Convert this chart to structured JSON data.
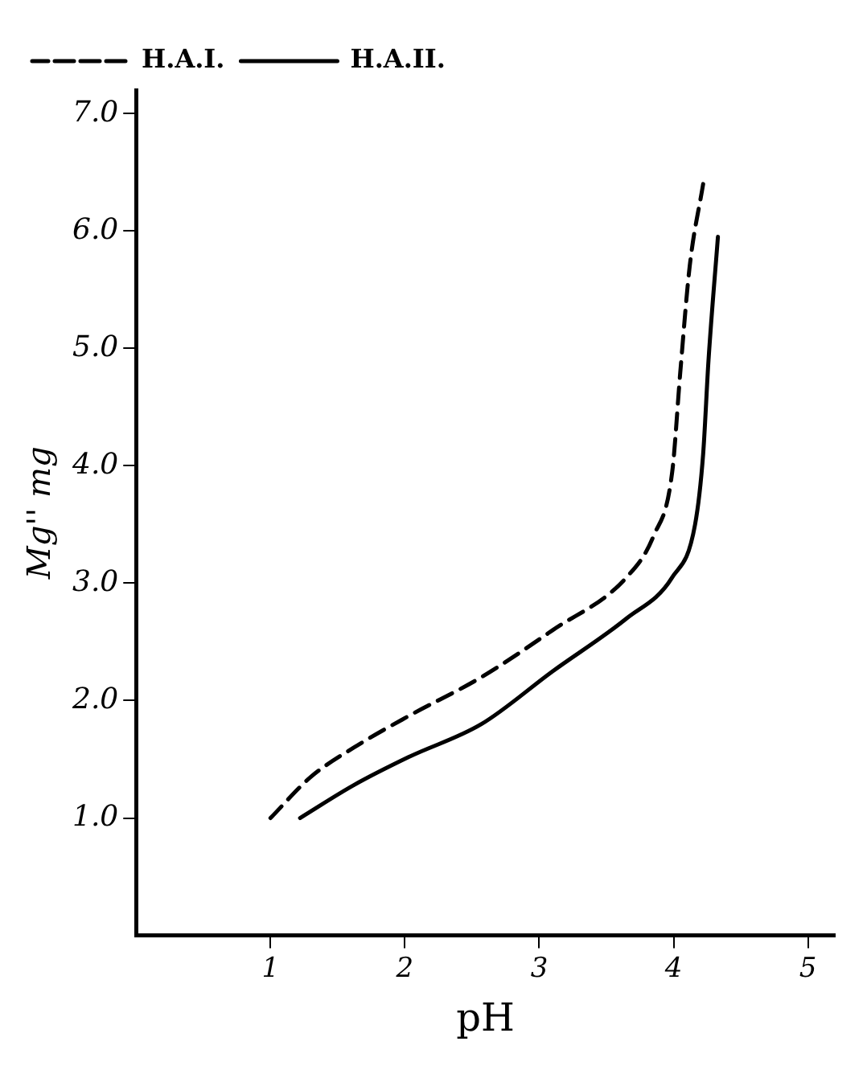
{
  "chart_data": {
    "type": "line",
    "xlabel": "pH",
    "ylabel": "Mg'' mg",
    "xlim": [
      0,
      5.2
    ],
    "xticks": [
      1,
      2,
      3,
      4,
      5
    ],
    "ylim": [
      0,
      7.2
    ],
    "yticks": [
      {
        "value": 1,
        "label": "1.0"
      },
      {
        "value": 2,
        "label": "2.0"
      },
      {
        "value": 3,
        "label": "3.0"
      },
      {
        "value": 4,
        "label": "4.0"
      },
      {
        "value": 5,
        "label": "5.0"
      },
      {
        "value": 6,
        "label": "6.0"
      },
      {
        "value": 7,
        "label": "7.0"
      }
    ],
    "grid": false,
    "legend": "top left",
    "marker": "none",
    "series": [
      {
        "name": "H.A.I.",
        "color": "#000000",
        "line_style": "dashed",
        "x": [
          1.0,
          1.3,
          1.62,
          2.03,
          2.57,
          3.1,
          3.65,
          3.85,
          3.99,
          4.05,
          4.12,
          4.22
        ],
        "values": [
          1.0,
          1.35,
          1.6,
          1.87,
          2.2,
          2.6,
          3.05,
          3.4,
          3.95,
          4.8,
          5.7,
          6.4
        ]
      },
      {
        "name": "H.A.II.",
        "color": "#000000",
        "line_style": "solid",
        "x": [
          1.22,
          1.62,
          2.03,
          2.57,
          3.1,
          3.65,
          3.99,
          4.16,
          4.22,
          4.26,
          4.33
        ],
        "values": [
          1.0,
          1.28,
          1.52,
          1.8,
          2.25,
          2.7,
          3.05,
          3.5,
          4.1,
          4.9,
          5.95
        ]
      }
    ]
  }
}
